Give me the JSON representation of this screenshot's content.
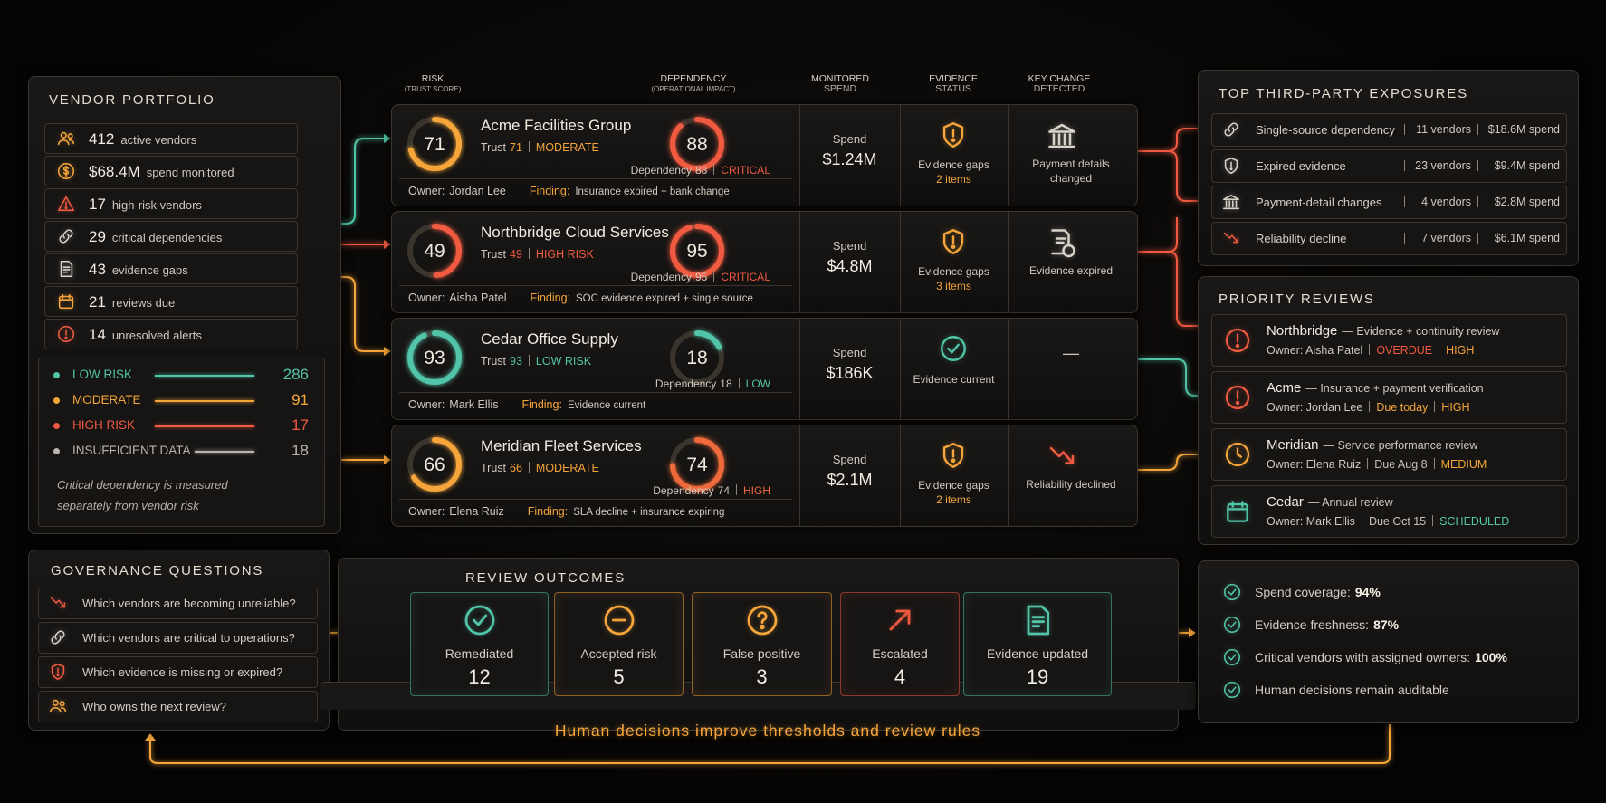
{
  "portfolio": {
    "title": "VENDOR PORTFOLIO",
    "stats": [
      {
        "value": "412",
        "label": "active vendors"
      },
      {
        "value": "$68.4M",
        "label": "spend monitored"
      },
      {
        "value": "17",
        "label": "high-risk vendors"
      },
      {
        "value": "29",
        "label": "critical dependencies"
      },
      {
        "value": "43",
        "label": "evidence gaps"
      },
      {
        "value": "21",
        "label": "reviews due"
      },
      {
        "value": "14",
        "label": "unresolved alerts"
      }
    ],
    "risk_legend": [
      {
        "label": "LOW RISK",
        "count": 286,
        "color": "#52c4a8"
      },
      {
        "label": "MODERATE",
        "count": 91,
        "color": "#f5a53a"
      },
      {
        "label": "HIGH RISK",
        "count": 17,
        "color": "#ef5a40"
      },
      {
        "label": "INSUFFICIENT DATA",
        "count": 18,
        "color": "#b9b4ae"
      }
    ],
    "note": "Critical dependency is measured separately from vendor risk"
  },
  "columns": [
    {
      "title": "RISK",
      "subtitle": "(TRUST SCORE)"
    },
    {
      "title": "DEPENDENCY",
      "subtitle": "(OPERATIONAL IMPACT)"
    },
    {
      "title": "MONITORED",
      "subtitle": "SPEND"
    },
    {
      "title": "EVIDENCE",
      "subtitle": "STATUS"
    },
    {
      "title": "KEY CHANGE",
      "subtitle": "DETECTED"
    }
  ],
  "vendors": [
    {
      "name": "Acme Facilities Group",
      "trust_label": "Trust",
      "trust": 71,
      "trust_rating": "MODERATE",
      "trust_color": "#f5a53a",
      "dependency_label": "Dependency",
      "dependency": 88,
      "dependency_rating": "CRITICAL",
      "dependency_color": "#ef5a40",
      "owner_label": "Owner:",
      "owner": "Jordan Lee",
      "finding_label": "Finding:",
      "finding": "Insurance expired + bank change",
      "spend_label": "Spend",
      "spend": "$1.24M",
      "evidence": "Evidence gaps",
      "evidence_detail": "2 items",
      "change": "Payment details changed"
    },
    {
      "name": "Northbridge Cloud Services",
      "trust_label": "Trust",
      "trust": 49,
      "trust_rating": "HIGH RISK",
      "trust_color": "#ef5a40",
      "dependency_label": "Dependency",
      "dependency": 95,
      "dependency_rating": "CRITICAL",
      "dependency_color": "#ef5a40",
      "owner_label": "Owner:",
      "owner": "Aisha Patel",
      "finding_label": "Finding:",
      "finding": "SOC evidence expired + single source",
      "spend_label": "Spend",
      "spend": "$4.8M",
      "evidence": "Evidence gaps",
      "evidence_detail": "3 items",
      "change": "Evidence expired"
    },
    {
      "name": "Cedar Office Supply",
      "trust_label": "Trust",
      "trust": 93,
      "trust_rating": "LOW RISK",
      "trust_color": "#52c4a8",
      "dependency_label": "Dependency",
      "dependency": 18,
      "dependency_rating": "LOW",
      "dependency_color": "#52c4a8",
      "owner_label": "Owner:",
      "owner": "Mark Ellis",
      "finding_label": "Finding:",
      "finding": "Evidence current",
      "spend_label": "Spend",
      "spend": "$186K",
      "evidence": "Evidence current",
      "change": "—"
    },
    {
      "name": "Meridian Fleet Services",
      "trust_label": "Trust",
      "trust": 66,
      "trust_rating": "MODERATE",
      "trust_color": "#f5a53a",
      "dependency_label": "Dependency",
      "dependency": 74,
      "dependency_rating": "HIGH",
      "dependency_color": "#ef6a3a",
      "owner_label": "Owner:",
      "owner": "Elena Ruiz",
      "finding_label": "Finding:",
      "finding": "SLA decline + insurance expiring",
      "spend_label": "Spend",
      "spend": "$2.1M",
      "evidence": "Evidence gaps",
      "evidence_detail": "2 items",
      "change": "Reliability declined"
    }
  ],
  "exposures": {
    "title": "TOP THIRD-PARTY EXPOSURES",
    "items": [
      {
        "label": "Single-source dependency",
        "vendors": "11 vendors",
        "spend": "$18.6M spend"
      },
      {
        "label": "Expired evidence",
        "vendors": "23 vendors",
        "spend": "$9.4M spend"
      },
      {
        "label": "Payment-detail changes",
        "vendors": "4 vendors",
        "spend": "$2.8M spend"
      },
      {
        "label": "Reliability decline",
        "vendors": "7 vendors",
        "spend": "$6.1M spend"
      }
    ]
  },
  "priority_reviews": {
    "title": "PRIORITY REVIEWS",
    "items": [
      {
        "name": "Northbridge",
        "task": "— Evidence + continuity review",
        "owner": "Owner: Aisha Patel",
        "due": "OVERDUE",
        "due_color": "#ef5a40",
        "severity": "HIGH",
        "severity_color": "#f5a53a"
      },
      {
        "name": "Acme",
        "task": "— Insurance + payment verification",
        "owner": "Owner: Jordan Lee",
        "due": "Due today",
        "due_color": "#f5a53a",
        "severity": "HIGH",
        "severity_color": "#f5a53a"
      },
      {
        "name": "Meridian",
        "task": "— Service performance review",
        "owner": "Owner: Elena Ruiz",
        "due": "Due Aug 8",
        "due_color": "#c9c2ba",
        "severity": "MEDIUM",
        "severity_color": "#f5a53a"
      },
      {
        "name": "Cedar",
        "task": "— Annual review",
        "owner": "Owner: Mark Ellis",
        "due": "Due Oct 15",
        "due_color": "#c9c2ba",
        "severity": "SCHEDULED",
        "severity_color": "#52c4a8"
      }
    ]
  },
  "governance": {
    "title": "GOVERNANCE QUESTIONS",
    "questions": [
      "Which vendors are becoming unreliable?",
      "Which vendors are critical to operations?",
      "Which evidence is missing or expired?",
      "Who owns the next review?"
    ]
  },
  "outcomes": {
    "title": "REVIEW OUTCOMES",
    "items": [
      {
        "label": "Remediated",
        "count": 12,
        "color": "#52c4a8"
      },
      {
        "label": "Accepted risk",
        "count": 5,
        "color": "#f5a53a"
      },
      {
        "label": "False positive",
        "count": 3,
        "color": "#f5a53a"
      },
      {
        "label": "Escalated",
        "count": 4,
        "color": "#ef5a40"
      },
      {
        "label": "Evidence updated",
        "count": 19,
        "color": "#52c4a8"
      }
    ]
  },
  "metrics": [
    {
      "label": "Spend coverage:",
      "value": "94%"
    },
    {
      "label": "Evidence freshness:",
      "value": "87%"
    },
    {
      "label": "Critical vendors with assigned owners:",
      "value": "100%"
    },
    {
      "label": "Human decisions remain auditable"
    }
  ],
  "footer": "Human decisions improve thresholds and review rules"
}
